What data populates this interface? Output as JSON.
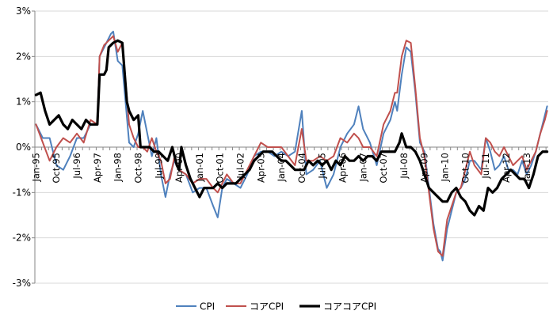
{
  "chart_data": {
    "type": "line",
    "title": "",
    "xlabel": "",
    "ylabel": "",
    "ylim": [
      -3,
      3
    ],
    "y_tick_labels": [
      "-3%",
      "-2%",
      "-1%",
      "0%",
      "1%",
      "2%",
      "3%"
    ],
    "y_tick_values": [
      -3,
      -2,
      -1,
      0,
      1,
      2,
      3
    ],
    "x_tick_labels": [
      "Jan-95",
      "Oct-95",
      "Jul-96",
      "Apr-97",
      "Jan-98",
      "Oct-98",
      "Jul-99",
      "Apr-00",
      "Jan-01",
      "Oct-01",
      "Jul-02",
      "Apr-03",
      "Jan-04",
      "Oct-04",
      "Jul-05",
      "Apr-06",
      "Jan-07",
      "Oct-07",
      "Jul-08",
      "Apr-09",
      "Jan-10",
      "Oct-10",
      "Jul-11",
      "Apr-12",
      "Jan-13"
    ],
    "x_tick_period_index": [
      0,
      9,
      18,
      27,
      36,
      45,
      54,
      63,
      72,
      81,
      90,
      99,
      108,
      117,
      126,
      135,
      144,
      153,
      162,
      171,
      180,
      189,
      198,
      207,
      216
    ],
    "n_periods": 226,
    "grid": "horizontal",
    "legend_position": "bottom",
    "series": [
      {
        "name": "CPI",
        "color": "#4f81bd",
        "width": 2,
        "points": [
          [
            0,
            0.5
          ],
          [
            3,
            0.2
          ],
          [
            6,
            0.2
          ],
          [
            9,
            -0.4
          ],
          [
            12,
            -0.5
          ],
          [
            15,
            -0.2
          ],
          [
            18,
            0.2
          ],
          [
            21,
            0.2
          ],
          [
            24,
            0.5
          ],
          [
            27,
            0.5
          ],
          [
            28,
            2.0
          ],
          [
            30,
            2.2
          ],
          [
            33,
            2.5
          ],
          [
            34,
            2.55
          ],
          [
            36,
            1.9
          ],
          [
            38,
            1.8
          ],
          [
            41,
            0.1
          ],
          [
            43,
            0.0
          ],
          [
            45,
            0.3
          ],
          [
            47,
            0.8
          ],
          [
            49,
            0.3
          ],
          [
            51,
            -0.2
          ],
          [
            53,
            0.2
          ],
          [
            55,
            -0.6
          ],
          [
            57,
            -1.1
          ],
          [
            59,
            -0.6
          ],
          [
            61,
            -0.3
          ],
          [
            63,
            -0.5
          ],
          [
            66,
            -0.6
          ],
          [
            69,
            -1.0
          ],
          [
            72,
            -0.9
          ],
          [
            75,
            -0.9
          ],
          [
            78,
            -1.3
          ],
          [
            80,
            -1.55
          ],
          [
            82,
            -0.9
          ],
          [
            84,
            -0.7
          ],
          [
            87,
            -0.8
          ],
          [
            90,
            -0.9
          ],
          [
            93,
            -0.6
          ],
          [
            96,
            -0.2
          ],
          [
            99,
            -0.1
          ],
          [
            102,
            -0.1
          ],
          [
            105,
            -0.2
          ],
          [
            108,
            -0.1
          ],
          [
            111,
            -0.2
          ],
          [
            114,
            -0.1
          ],
          [
            117,
            0.8
          ],
          [
            119,
            -0.6
          ],
          [
            122,
            -0.5
          ],
          [
            125,
            -0.3
          ],
          [
            128,
            -0.9
          ],
          [
            131,
            -0.6
          ],
          [
            134,
            0.0
          ],
          [
            137,
            0.3
          ],
          [
            140,
            0.5
          ],
          [
            142,
            0.9
          ],
          [
            144,
            0.4
          ],
          [
            147,
            0.1
          ],
          [
            150,
            -0.4
          ],
          [
            153,
            0.3
          ],
          [
            156,
            0.6
          ],
          [
            158,
            1.0
          ],
          [
            159,
            0.8
          ],
          [
            161,
            1.6
          ],
          [
            163,
            2.2
          ],
          [
            165,
            2.1
          ],
          [
            167,
            1.2
          ],
          [
            169,
            0.1
          ],
          [
            171,
            -0.1
          ],
          [
            173,
            -0.9
          ],
          [
            175,
            -1.7
          ],
          [
            177,
            -2.25
          ],
          [
            178,
            -2.3
          ],
          [
            179,
            -2.5
          ],
          [
            181,
            -1.8
          ],
          [
            183,
            -1.4
          ],
          [
            185,
            -1.0
          ],
          [
            187,
            -0.9
          ],
          [
            189,
            -0.7
          ],
          [
            191,
            -0.3
          ],
          [
            193,
            -0.3
          ],
          [
            196,
            -0.5
          ],
          [
            198,
            0.2
          ],
          [
            200,
            -0.1
          ],
          [
            202,
            -0.5
          ],
          [
            204,
            -0.4
          ],
          [
            206,
            -0.2
          ],
          [
            208,
            -0.5
          ],
          [
            210,
            -0.5
          ],
          [
            212,
            -0.6
          ],
          [
            214,
            -0.3
          ],
          [
            216,
            -0.6
          ],
          [
            218,
            -0.4
          ],
          [
            220,
            -0.1
          ],
          [
            222,
            0.3
          ],
          [
            224,
            0.7
          ],
          [
            225,
            0.9
          ]
        ]
      },
      {
        "name": "コアCPI",
        "color": "#c0504d",
        "width": 2,
        "points": [
          [
            0,
            0.5
          ],
          [
            3,
            0.1
          ],
          [
            6,
            -0.3
          ],
          [
            9,
            0.0
          ],
          [
            12,
            0.2
          ],
          [
            15,
            0.1
          ],
          [
            18,
            0.3
          ],
          [
            21,
            0.1
          ],
          [
            24,
            0.6
          ],
          [
            27,
            0.5
          ],
          [
            28,
            2.0
          ],
          [
            30,
            2.25
          ],
          [
            33,
            2.4
          ],
          [
            34,
            2.45
          ],
          [
            36,
            2.1
          ],
          [
            38,
            2.3
          ],
          [
            41,
            0.5
          ],
          [
            43,
            0.2
          ],
          [
            45,
            0.0
          ],
          [
            47,
            0.0
          ],
          [
            49,
            -0.1
          ],
          [
            51,
            0.2
          ],
          [
            53,
            -0.1
          ],
          [
            55,
            -0.3
          ],
          [
            57,
            -0.8
          ],
          [
            59,
            -0.7
          ],
          [
            61,
            -0.2
          ],
          [
            63,
            -0.5
          ],
          [
            66,
            -0.6
          ],
          [
            69,
            -0.8
          ],
          [
            72,
            -0.7
          ],
          [
            75,
            -0.7
          ],
          [
            78,
            -0.9
          ],
          [
            80,
            -1.0
          ],
          [
            82,
            -0.8
          ],
          [
            84,
            -0.6
          ],
          [
            87,
            -0.8
          ],
          [
            90,
            -0.8
          ],
          [
            93,
            -0.5
          ],
          [
            96,
            -0.2
          ],
          [
            99,
            0.1
          ],
          [
            102,
            0.0
          ],
          [
            105,
            0.0
          ],
          [
            108,
            0.0
          ],
          [
            111,
            -0.2
          ],
          [
            114,
            -0.4
          ],
          [
            117,
            0.4
          ],
          [
            119,
            -0.3
          ],
          [
            122,
            -0.3
          ],
          [
            125,
            -0.2
          ],
          [
            128,
            -0.3
          ],
          [
            131,
            -0.2
          ],
          [
            134,
            0.2
          ],
          [
            137,
            0.1
          ],
          [
            140,
            0.3
          ],
          [
            142,
            0.2
          ],
          [
            144,
            0.0
          ],
          [
            147,
            0.0
          ],
          [
            150,
            -0.2
          ],
          [
            153,
            0.5
          ],
          [
            156,
            0.8
          ],
          [
            158,
            1.2
          ],
          [
            159,
            1.2
          ],
          [
            161,
            2.0
          ],
          [
            163,
            2.35
          ],
          [
            165,
            2.3
          ],
          [
            167,
            1.3
          ],
          [
            169,
            0.2
          ],
          [
            171,
            -0.2
          ],
          [
            173,
            -1.0
          ],
          [
            175,
            -1.8
          ],
          [
            177,
            -2.3
          ],
          [
            178,
            -2.35
          ],
          [
            179,
            -2.4
          ],
          [
            181,
            -1.6
          ],
          [
            183,
            -1.3
          ],
          [
            185,
            -1.0
          ],
          [
            187,
            -0.9
          ],
          [
            189,
            -0.5
          ],
          [
            191,
            -0.1
          ],
          [
            193,
            -0.4
          ],
          [
            196,
            -0.6
          ],
          [
            198,
            0.2
          ],
          [
            200,
            0.1
          ],
          [
            202,
            -0.1
          ],
          [
            204,
            -0.2
          ],
          [
            206,
            0.0
          ],
          [
            208,
            -0.2
          ],
          [
            210,
            -0.4
          ],
          [
            212,
            -0.3
          ],
          [
            214,
            -0.2
          ],
          [
            216,
            -0.5
          ],
          [
            218,
            -0.3
          ],
          [
            220,
            -0.1
          ],
          [
            222,
            0.3
          ],
          [
            224,
            0.6
          ],
          [
            225,
            0.8
          ]
        ]
      },
      {
        "name": "コアコアCPI",
        "color": "#000000",
        "width": 3.2,
        "points": [
          [
            0,
            1.15
          ],
          [
            2,
            1.2
          ],
          [
            4,
            0.8
          ],
          [
            6,
            0.5
          ],
          [
            8,
            0.6
          ],
          [
            10,
            0.7
          ],
          [
            12,
            0.5
          ],
          [
            14,
            0.4
          ],
          [
            16,
            0.6
          ],
          [
            18,
            0.5
          ],
          [
            20,
            0.4
          ],
          [
            22,
            0.6
          ],
          [
            24,
            0.5
          ],
          [
            26,
            0.5
          ],
          [
            27,
            0.5
          ],
          [
            28,
            1.6
          ],
          [
            30,
            1.6
          ],
          [
            31,
            1.7
          ],
          [
            32,
            2.2
          ],
          [
            34,
            2.3
          ],
          [
            36,
            2.35
          ],
          [
            38,
            2.3
          ],
          [
            40,
            1.0
          ],
          [
            41,
            0.8
          ],
          [
            43,
            0.6
          ],
          [
            45,
            0.7
          ],
          [
            46,
            0.0
          ],
          [
            48,
            0.0
          ],
          [
            50,
            0.0
          ],
          [
            52,
            -0.1
          ],
          [
            54,
            -0.1
          ],
          [
            56,
            -0.2
          ],
          [
            58,
            -0.3
          ],
          [
            60,
            0.0
          ],
          [
            62,
            -0.4
          ],
          [
            63,
            -0.5
          ],
          [
            64,
            0.0
          ],
          [
            66,
            -0.4
          ],
          [
            68,
            -0.7
          ],
          [
            70,
            -0.9
          ],
          [
            72,
            -1.1
          ],
          [
            74,
            -0.9
          ],
          [
            76,
            -0.9
          ],
          [
            78,
            -0.9
          ],
          [
            80,
            -0.8
          ],
          [
            82,
            -0.9
          ],
          [
            84,
            -0.8
          ],
          [
            86,
            -0.8
          ],
          [
            88,
            -0.8
          ],
          [
            90,
            -0.7
          ],
          [
            92,
            -0.6
          ],
          [
            94,
            -0.5
          ],
          [
            96,
            -0.3
          ],
          [
            98,
            -0.2
          ],
          [
            100,
            -0.1
          ],
          [
            102,
            -0.1
          ],
          [
            104,
            -0.1
          ],
          [
            106,
            -0.2
          ],
          [
            108,
            -0.3
          ],
          [
            110,
            -0.3
          ],
          [
            112,
            -0.4
          ],
          [
            114,
            -0.5
          ],
          [
            116,
            -0.5
          ],
          [
            118,
            -0.5
          ],
          [
            120,
            -0.3
          ],
          [
            122,
            -0.4
          ],
          [
            124,
            -0.3
          ],
          [
            126,
            -0.4
          ],
          [
            128,
            -0.3
          ],
          [
            130,
            -0.5
          ],
          [
            132,
            -0.3
          ],
          [
            134,
            -0.4
          ],
          [
            136,
            -0.2
          ],
          [
            138,
            -0.3
          ],
          [
            140,
            -0.3
          ],
          [
            142,
            -0.2
          ],
          [
            144,
            -0.3
          ],
          [
            146,
            -0.2
          ],
          [
            148,
            -0.2
          ],
          [
            150,
            -0.3
          ],
          [
            152,
            -0.1
          ],
          [
            154,
            -0.1
          ],
          [
            156,
            -0.1
          ],
          [
            158,
            -0.1
          ],
          [
            160,
            0.1
          ],
          [
            161,
            0.3
          ],
          [
            163,
            0.0
          ],
          [
            165,
            0.0
          ],
          [
            167,
            -0.1
          ],
          [
            169,
            -0.3
          ],
          [
            171,
            -0.6
          ],
          [
            173,
            -0.9
          ],
          [
            175,
            -1.0
          ],
          [
            177,
            -1.1
          ],
          [
            179,
            -1.2
          ],
          [
            181,
            -1.2
          ],
          [
            183,
            -1.0
          ],
          [
            185,
            -0.9
          ],
          [
            187,
            -1.1
          ],
          [
            189,
            -1.2
          ],
          [
            191,
            -1.4
          ],
          [
            193,
            -1.5
          ],
          [
            195,
            -1.3
          ],
          [
            197,
            -1.4
          ],
          [
            199,
            -0.9
          ],
          [
            201,
            -1.0
          ],
          [
            203,
            -0.9
          ],
          [
            205,
            -0.7
          ],
          [
            207,
            -0.6
          ],
          [
            209,
            -0.5
          ],
          [
            211,
            -0.6
          ],
          [
            213,
            -0.7
          ],
          [
            215,
            -0.7
          ],
          [
            217,
            -0.9
          ],
          [
            219,
            -0.6
          ],
          [
            221,
            -0.2
          ],
          [
            223,
            -0.1
          ],
          [
            225,
            -0.1
          ]
        ]
      }
    ]
  }
}
